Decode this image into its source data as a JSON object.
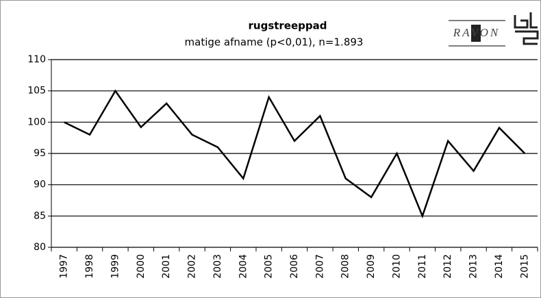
{
  "chart_data": {
    "type": "line",
    "title": "rugstreeppad",
    "subtitle": "matige afname (p<0,01), n=1.893",
    "logo": "RAVON",
    "categories": [
      "1997",
      "1998",
      "1999",
      "2000",
      "2001",
      "2002",
      "2003",
      "2004",
      "2005",
      "2006",
      "2007",
      "2008",
      "2009",
      "2010",
      "2011",
      "2012",
      "2013",
      "2014",
      "2015"
    ],
    "values": [
      100,
      98,
      105,
      99.2,
      103,
      98,
      96,
      91,
      104,
      97,
      101,
      91,
      88,
      95,
      85,
      97,
      92.2,
      99.1,
      95
    ],
    "color": "#000000",
    "ylim": [
      80,
      110
    ],
    "yticks": [
      80,
      85,
      90,
      95,
      100,
      105,
      110
    ],
    "grid": true
  }
}
